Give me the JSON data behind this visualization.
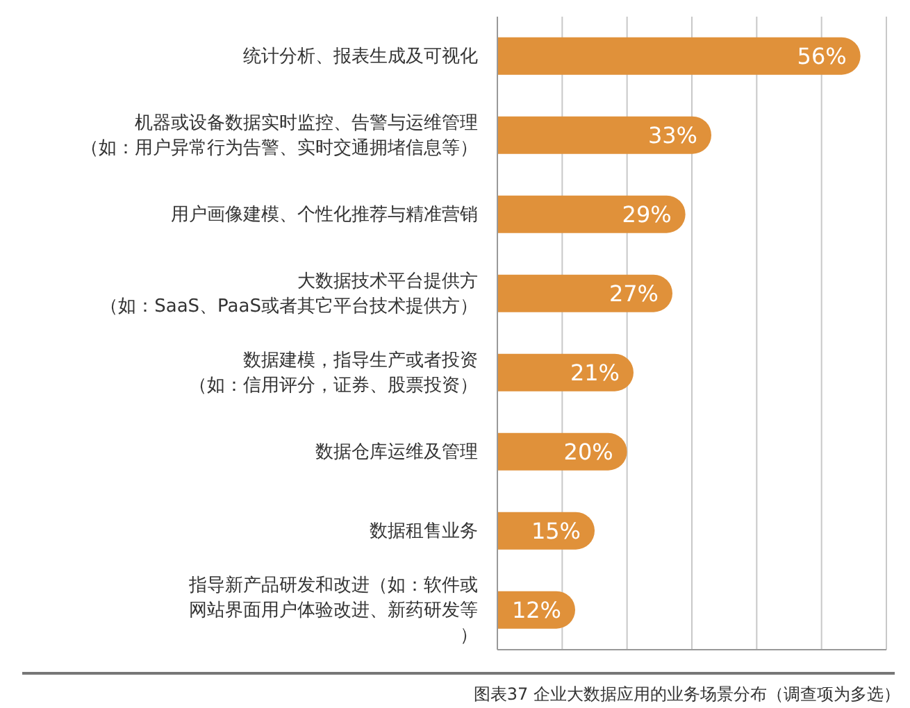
{
  "chart_data": {
    "type": "bar",
    "orientation": "horizontal",
    "categories": [
      "统计分析、报表生成及可视化",
      "机器或设备数据实时监控、告警与运维管理（如：用户异常行为告警、实时交通拥堵信息等）",
      "用户画像建模、个性化推荐与精准营销",
      "大数据技术平台提供方（如：SaaS、PaaS或者其它平台技术提供方）",
      "数据建模，指导生产或者投资（如：信用评分，证券、股票投资）",
      "数据仓库运维及管理",
      "数据租售业务",
      "指导新产品研发和改进（如：软件或网站界面用户体验改进、新药研发等）"
    ],
    "values": [
      56,
      33,
      29,
      27,
      21,
      20,
      15,
      12
    ],
    "value_labels": [
      "56%",
      "33%",
      "29%",
      "27%",
      "21%",
      "20%",
      "15%",
      "12%"
    ],
    "color": "#e0913a",
    "xlim": [
      0,
      60
    ],
    "xticks": [
      {
        "value": 0,
        "label": null
      },
      {
        "value": 10,
        "label": null
      },
      {
        "value": 20,
        "label": null
      },
      {
        "value": 30,
        "label": null
      },
      {
        "value": 40,
        "label": null
      },
      {
        "value": 50,
        "label": null
      },
      {
        "value": 60,
        "label": null
      }
    ],
    "grid": "x",
    "tick_labels": "y",
    "legend": false,
    "annotations": [
      "图表37 企业大数据应用的业务场景分布（调查项为多选）"
    ]
  }
}
